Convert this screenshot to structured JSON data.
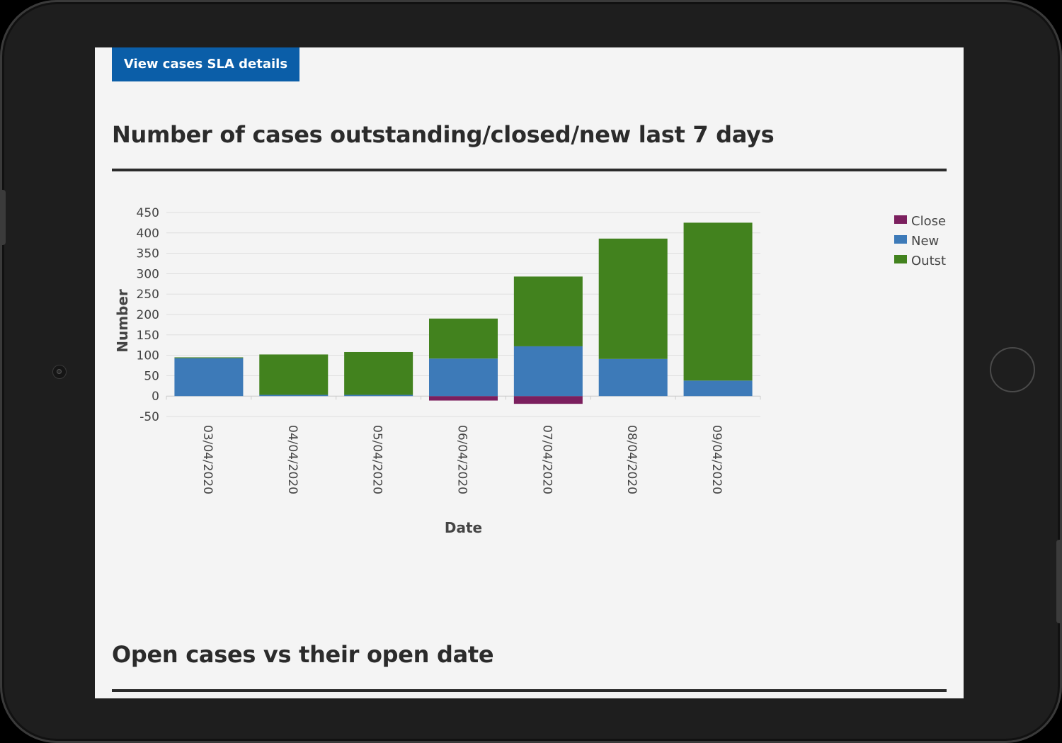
{
  "page": {
    "sla_button_label": "View cases SLA details",
    "section1_title": "Number of cases outstanding/closed/new last 7 days",
    "section2_title": "Open cases vs their open date"
  },
  "chart_data": {
    "type": "bar",
    "stacked": true,
    "title": "Number of cases outstanding/closed/new last 7 days",
    "xlabel": "Date",
    "ylabel": "Number",
    "ylim": [
      -50,
      450
    ],
    "yticks": [
      -50,
      0,
      50,
      100,
      150,
      200,
      250,
      300,
      350,
      400,
      450
    ],
    "grid": true,
    "legend_position": "right",
    "categories": [
      "03/04/2020",
      "04/04/2020",
      "05/04/2020",
      "06/04/2020",
      "07/04/2020",
      "08/04/2020",
      "09/04/2020"
    ],
    "series": [
      {
        "name": "Closed",
        "legend_label": "Close",
        "color": "#7b1f5e",
        "values": [
          0,
          0,
          0,
          -11,
          -19,
          0,
          0
        ]
      },
      {
        "name": "New",
        "legend_label": "New",
        "color": "#3d7ab8",
        "values": [
          93,
          3,
          3,
          92,
          122,
          91,
          38
        ]
      },
      {
        "name": "Outstanding",
        "legend_label": "Outst",
        "color": "#42821e",
        "values": [
          2,
          99,
          105,
          98,
          171,
          295,
          387
        ]
      }
    ]
  }
}
